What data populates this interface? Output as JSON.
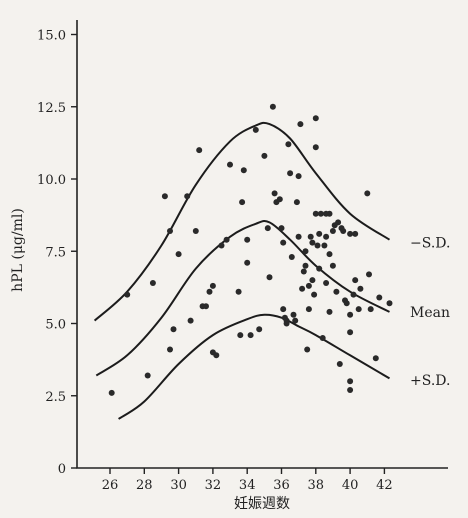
{
  "chart_data": {
    "type": "scatter",
    "xlabel": "妊娠週数",
    "ylabel": "hPL (μg/ml)",
    "xlim": [
      25,
      44
    ],
    "ylim": [
      0,
      15
    ],
    "x_ticks": [
      26,
      28,
      30,
      32,
      34,
      36,
      38,
      40,
      42
    ],
    "y_ticks": [
      0,
      2.5,
      5.0,
      7.5,
      10.0,
      12.5,
      15.0
    ],
    "y_tick_labels": [
      "0",
      "2.5",
      "5.0",
      "7.5",
      "10.0",
      "12.5",
      "15.0"
    ],
    "curve_labels": {
      "upper": "−S.D.",
      "mean": "Mean",
      "lower": "+S.D."
    },
    "curves": [
      {
        "name": "−S.D.",
        "x": [
          25.1,
          27,
          29,
          31,
          33,
          34.5,
          35.3,
          36.5,
          38,
          40,
          42.3
        ],
        "y": [
          5.1,
          6.1,
          7.7,
          9.8,
          11.3,
          11.85,
          11.9,
          11.4,
          10.2,
          8.8,
          7.9
        ]
      },
      {
        "name": "Mean",
        "x": [
          25.2,
          27,
          29,
          31,
          33,
          34.5,
          35.3,
          36.5,
          38,
          40,
          42.3
        ],
        "y": [
          3.2,
          3.9,
          5.2,
          6.9,
          8.0,
          8.45,
          8.5,
          7.9,
          7.0,
          6.1,
          5.4
        ]
      },
      {
        "name": "+S.D.",
        "x": [
          26.5,
          28,
          30,
          32,
          34,
          35,
          36,
          37,
          38,
          40,
          42.3
        ],
        "y": [
          1.7,
          2.3,
          3.6,
          4.6,
          5.15,
          5.3,
          5.2,
          4.9,
          4.6,
          3.9,
          3.1
        ]
      }
    ],
    "points": [
      [
        26.1,
        2.6
      ],
      [
        27,
        6.0
      ],
      [
        28.2,
        3.2
      ],
      [
        28.5,
        6.4
      ],
      [
        29.2,
        9.4
      ],
      [
        29.5,
        8.2
      ],
      [
        29.5,
        4.1
      ],
      [
        29.7,
        4.8
      ],
      [
        30.0,
        7.4
      ],
      [
        30.5,
        9.4
      ],
      [
        30.7,
        5.1
      ],
      [
        31.0,
        8.2
      ],
      [
        31.2,
        11.0
      ],
      [
        31.4,
        5.6
      ],
      [
        31.6,
        5.6
      ],
      [
        31.8,
        6.1
      ],
      [
        32.0,
        6.3
      ],
      [
        32.0,
        4.0
      ],
      [
        32.2,
        3.9
      ],
      [
        32.5,
        7.7
      ],
      [
        32.8,
        7.9
      ],
      [
        33.0,
        10.5
      ],
      [
        33.5,
        6.1
      ],
      [
        33.6,
        4.6
      ],
      [
        33.7,
        9.2
      ],
      [
        33.8,
        10.3
      ],
      [
        34.0,
        7.9
      ],
      [
        34.0,
        7.1
      ],
      [
        34.2,
        4.6
      ],
      [
        34.5,
        11.7
      ],
      [
        34.7,
        4.8
      ],
      [
        35.0,
        10.8
      ],
      [
        35.2,
        8.3
      ],
      [
        35.3,
        6.6
      ],
      [
        35.5,
        12.5
      ],
      [
        35.6,
        9.5
      ],
      [
        35.7,
        9.2
      ],
      [
        35.9,
        9.3
      ],
      [
        36.0,
        8.3
      ],
      [
        36.1,
        7.8
      ],
      [
        36.1,
        5.5
      ],
      [
        36.2,
        5.2
      ],
      [
        36.3,
        5.1
      ],
      [
        36.3,
        5.0
      ],
      [
        36.4,
        11.2
      ],
      [
        36.5,
        10.2
      ],
      [
        36.6,
        7.3
      ],
      [
        36.7,
        5.3
      ],
      [
        36.8,
        5.1
      ],
      [
        36.9,
        9.2
      ],
      [
        37.0,
        10.1
      ],
      [
        37.0,
        8.0
      ],
      [
        37.1,
        11.9
      ],
      [
        37.2,
        6.2
      ],
      [
        37.3,
        6.8
      ],
      [
        37.4,
        7.5
      ],
      [
        37.4,
        7.0
      ],
      [
        37.5,
        4.1
      ],
      [
        37.6,
        6.3
      ],
      [
        37.6,
        5.5
      ],
      [
        37.7,
        8.0
      ],
      [
        37.8,
        7.8
      ],
      [
        37.8,
        6.5
      ],
      [
        37.9,
        6.0
      ],
      [
        38.0,
        12.1
      ],
      [
        38.0,
        11.1
      ],
      [
        38.0,
        8.8
      ],
      [
        38.1,
        7.7
      ],
      [
        38.2,
        8.1
      ],
      [
        38.2,
        6.9
      ],
      [
        38.3,
        8.8
      ],
      [
        38.4,
        4.5
      ],
      [
        38.5,
        7.7
      ],
      [
        38.6,
        8.8
      ],
      [
        38.6,
        8.0
      ],
      [
        38.6,
        6.4
      ],
      [
        38.8,
        8.8
      ],
      [
        38.8,
        7.4
      ],
      [
        38.8,
        5.4
      ],
      [
        39.0,
        8.2
      ],
      [
        39.0,
        7.0
      ],
      [
        39.1,
        8.4
      ],
      [
        39.2,
        6.1
      ],
      [
        39.3,
        8.5
      ],
      [
        39.4,
        3.6
      ],
      [
        39.5,
        8.3
      ],
      [
        39.6,
        8.2
      ],
      [
        39.7,
        5.8
      ],
      [
        39.8,
        5.7
      ],
      [
        40.0,
        8.1
      ],
      [
        40.0,
        5.3
      ],
      [
        40.0,
        4.7
      ],
      [
        40.0,
        3.0
      ],
      [
        40.0,
        2.7
      ],
      [
        40.2,
        6.0
      ],
      [
        40.3,
        6.5
      ],
      [
        40.3,
        8.1
      ],
      [
        40.5,
        5.5
      ],
      [
        40.6,
        6.2
      ],
      [
        41.0,
        9.5
      ],
      [
        41.1,
        6.7
      ],
      [
        41.2,
        5.5
      ],
      [
        41.5,
        3.8
      ],
      [
        41.7,
        5.9
      ],
      [
        42.3,
        5.7
      ]
    ]
  }
}
